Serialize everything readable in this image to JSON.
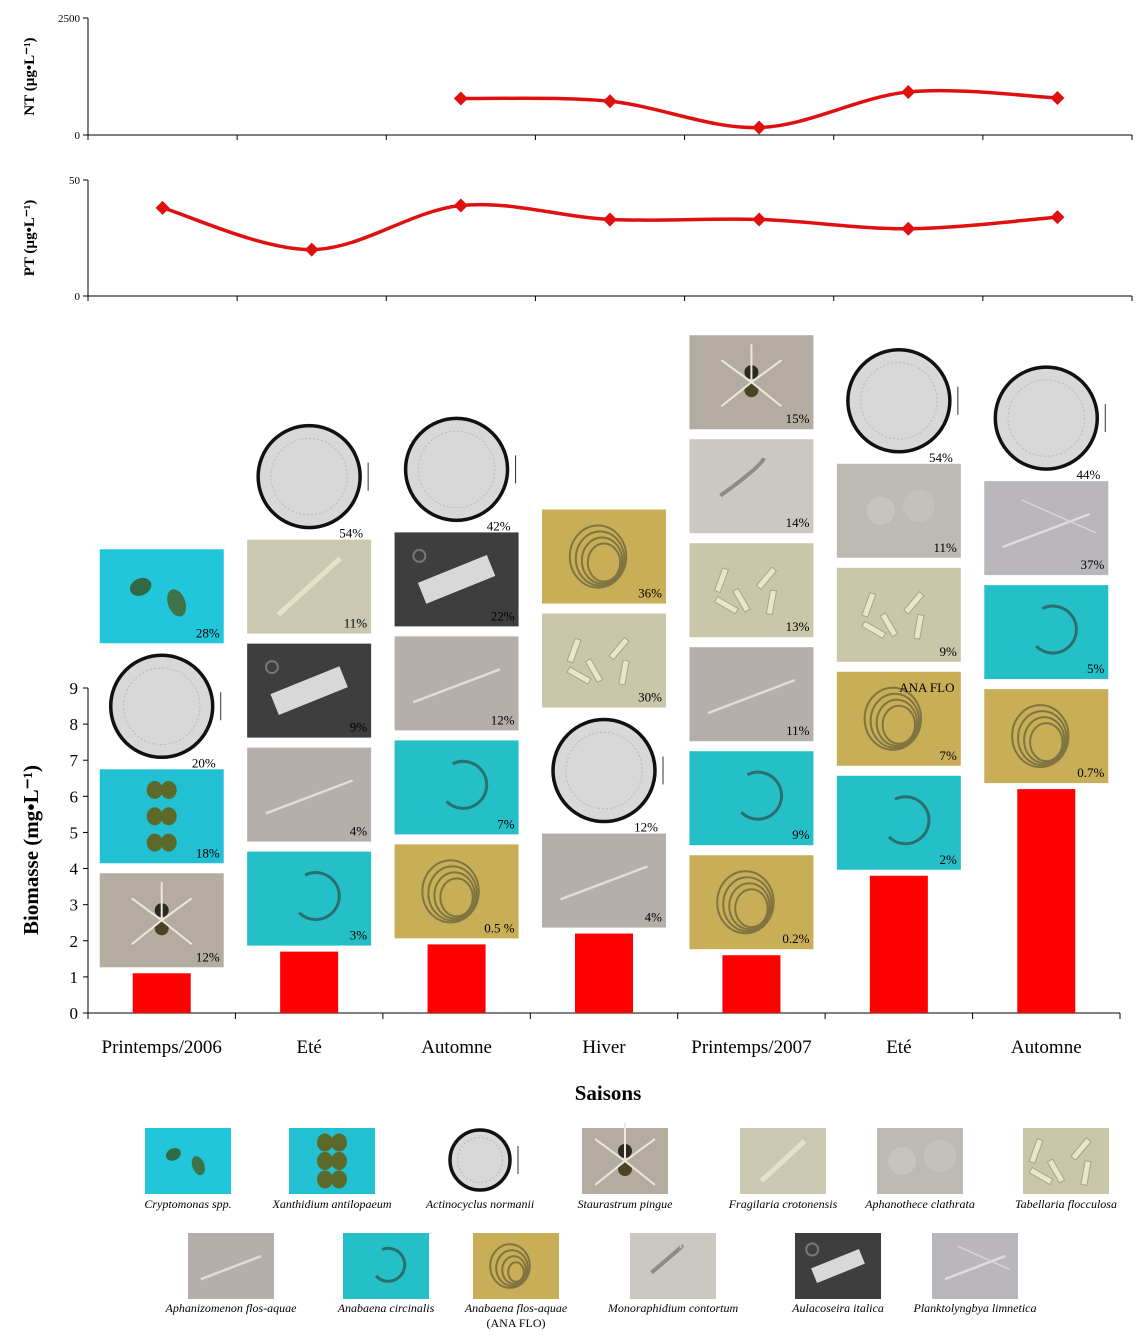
{
  "colors": {
    "line": "#e01010",
    "bar": "#ff0000",
    "tiles": {
      "cryptomonas": "#21c6da",
      "xanthidium": "#22c0d2",
      "actinocyclus": "#d8d8d8",
      "staurastrum": "#b4aca0",
      "fragilaria": "#cbc8b2",
      "aphanothece": "#bdbab4",
      "tabellaria": "#c9c6aa",
      "aphanizomenon": "#b6aeaa",
      "anabaena_circ": "#25bfc8",
      "anabaena_flo": "#c9ae58",
      "monoraphidium": "#cac8c0",
      "aulacoseira": "#3e3e3e",
      "planktolyngbya": "#b9b6bc"
    }
  },
  "chart_data": [
    {
      "type": "line",
      "title": "",
      "ylabel": "NT (µg•L⁻¹)",
      "ylim": [
        0,
        2500
      ],
      "y_ticks": [
        "2500",
        "0"
      ],
      "x_index": [
        3,
        4,
        5,
        6,
        7
      ],
      "values": [
        780,
        720,
        160,
        920,
        790
      ]
    },
    {
      "type": "line",
      "title": "",
      "ylabel": "PT (µg•L⁻¹)",
      "ylim": [
        0,
        50
      ],
      "y_ticks": [
        "50",
        "0"
      ],
      "x_index": [
        1,
        2,
        3,
        4,
        5,
        6,
        7
      ],
      "values": [
        38,
        20,
        39,
        33,
        33,
        29,
        34
      ]
    },
    {
      "type": "bar",
      "title": "",
      "ylabel": "Biomasse (mg•L⁻¹)",
      "xlabel": "Saisons",
      "ylim": [
        0,
        9
      ],
      "y_ticks": [
        "0",
        "1",
        "2",
        "3",
        "4",
        "5",
        "6",
        "7",
        "8",
        "9"
      ],
      "categories": [
        "Printemps/2006",
        "Eté",
        "Automne",
        "Hiver",
        "Printemps/2007",
        "Eté",
        "Automne"
      ],
      "values": [
        1.1,
        1.7,
        1.9,
        2.2,
        1.6,
        3.8,
        6.2
      ],
      "composition": [
        [
          {
            "taxon": "staurastrum",
            "pct": "12%"
          },
          {
            "taxon": "xanthidium",
            "pct": "18%"
          },
          {
            "taxon": "actinocyclus",
            "pct": "20%"
          },
          {
            "taxon": "cryptomonas",
            "pct": "28%"
          }
        ],
        [
          {
            "taxon": "anabaena_circ",
            "pct": "3%"
          },
          {
            "taxon": "aphanizomenon",
            "pct": "4%"
          },
          {
            "taxon": "aulacoseira",
            "pct": "9%"
          },
          {
            "taxon": "fragilaria",
            "pct": "11%"
          },
          {
            "taxon": "actinocyclus",
            "pct": "54%"
          }
        ],
        [
          {
            "taxon": "anabaena_flo",
            "pct": "0.5 %"
          },
          {
            "taxon": "anabaena_circ",
            "pct": "7%"
          },
          {
            "taxon": "aphanizomenon",
            "pct": "12%"
          },
          {
            "taxon": "aulacoseira",
            "pct": "22%"
          },
          {
            "taxon": "actinocyclus",
            "pct": "42%"
          }
        ],
        [
          {
            "taxon": "aphanizomenon",
            "pct": "4%"
          },
          {
            "taxon": "actinocyclus",
            "pct": "12%"
          },
          {
            "taxon": "tabellaria",
            "pct": "30%"
          },
          {
            "taxon": "anabaena_flo",
            "pct": "36%"
          }
        ],
        [
          {
            "taxon": "anabaena_flo",
            "pct": "0.2%"
          },
          {
            "taxon": "anabaena_circ",
            "pct": "9%"
          },
          {
            "taxon": "aphanizomenon",
            "pct": "11%"
          },
          {
            "taxon": "tabellaria",
            "pct": "13%"
          },
          {
            "taxon": "monoraphidium",
            "pct": "14%"
          },
          {
            "taxon": "staurastrum",
            "pct": "15%"
          }
        ],
        [
          {
            "taxon": "anabaena_circ",
            "pct": "2%"
          },
          {
            "taxon": "anabaena_flo",
            "pct": "7%",
            "label": "ANA FLO"
          },
          {
            "taxon": "tabellaria",
            "pct": "9%"
          },
          {
            "taxon": "aphanothece",
            "pct": "11%"
          },
          {
            "taxon": "actinocyclus",
            "pct": "54%"
          }
        ],
        [
          {
            "taxon": "anabaena_flo",
            "pct": "0.7%"
          },
          {
            "taxon": "anabaena_circ",
            "pct": "5%"
          },
          {
            "taxon": "planktolyngbya",
            "pct": "37%"
          },
          {
            "taxon": "actinocyclus",
            "pct": "44%"
          }
        ]
      ]
    }
  ],
  "legend": [
    {
      "taxon": "cryptomonas",
      "label": "Cryptomonas spp."
    },
    {
      "taxon": "xanthidium",
      "label": "Xanthidium antilopaeum"
    },
    {
      "taxon": "actinocyclus",
      "label": "Actinocyclus normanii"
    },
    {
      "taxon": "staurastrum",
      "label": "Staurastrum pingue"
    },
    {
      "taxon": "fragilaria",
      "label": "Fragilaria crotonensis"
    },
    {
      "taxon": "aphanothece",
      "label": "Aphanothece clathrata"
    },
    {
      "taxon": "tabellaria",
      "label": "Tabellaria flocculosa"
    },
    {
      "taxon": "aphanizomenon",
      "label": "Aphanizomenon flos-aquae"
    },
    {
      "taxon": "anabaena_circ",
      "label": "Anabaena circinalis"
    },
    {
      "taxon": "anabaena_flo",
      "label": "Anabaena flos-aquae",
      "label2": "(ANA FLO)"
    },
    {
      "taxon": "monoraphidium",
      "label": "Monoraphidium contortum"
    },
    {
      "taxon": "aulacoseira",
      "label": "Aulacoseira italica"
    },
    {
      "taxon": "planktolyngbya",
      "label": "Planktolyngbya limnetica"
    }
  ]
}
